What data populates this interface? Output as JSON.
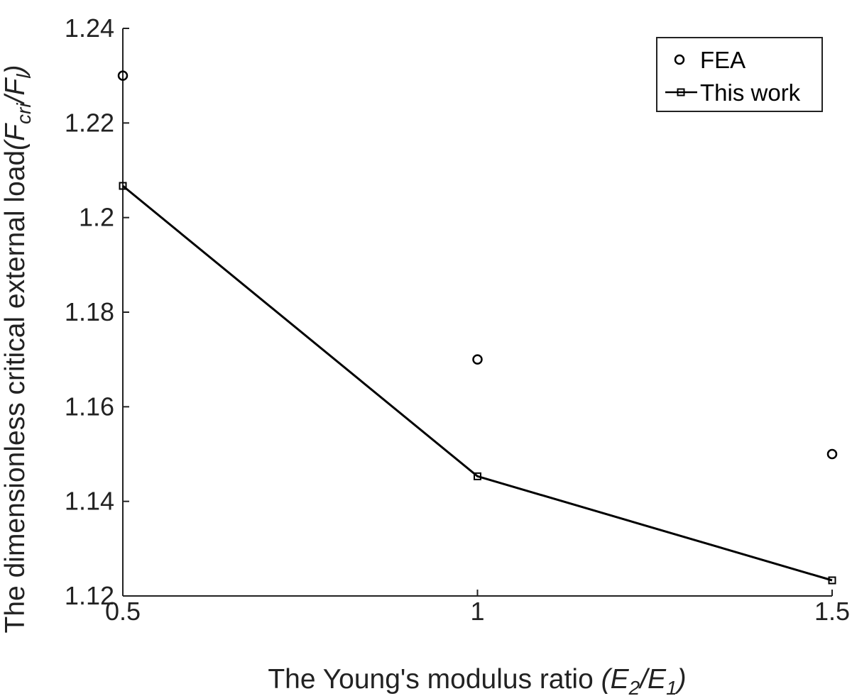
{
  "chart_data": {
    "type": "line",
    "x": [
      0.5,
      1,
      1.5
    ],
    "xlim": [
      0.5,
      1.5
    ],
    "ylim": [
      1.12,
      1.24
    ],
    "xticks": [
      "0.5",
      "1",
      "1.5"
    ],
    "yticks": [
      "1.12",
      "1.14",
      "1.16",
      "1.18",
      "1.2",
      "1.22",
      "1.24"
    ],
    "xtick_values": [
      0.5,
      1,
      1.5
    ],
    "ytick_values": [
      1.12,
      1.14,
      1.16,
      1.18,
      1.2,
      1.22,
      1.24
    ],
    "xlabel": {
      "main": "The Young's modulus ratio ",
      "open": "(E",
      "sub1": "2",
      "mid": "/E",
      "sub2": "1",
      "close": ")"
    },
    "ylabel": {
      "main": "The dimensionless critical external load",
      "open": "(F",
      "sub1": "cri",
      "mid": "/F",
      "sub2": "l",
      "close": ")"
    },
    "series": [
      {
        "name": "FEA",
        "style": "markers",
        "marker": "circle",
        "values": [
          1.23,
          1.17,
          1.15
        ]
      },
      {
        "name": "This work",
        "style": "line+markers",
        "marker": "square",
        "values": [
          1.2067,
          1.1453,
          1.1233
        ]
      }
    ],
    "legend_position": "top-right",
    "grid": false,
    "colors": {
      "series": "#000000",
      "axis": "#222222"
    }
  }
}
